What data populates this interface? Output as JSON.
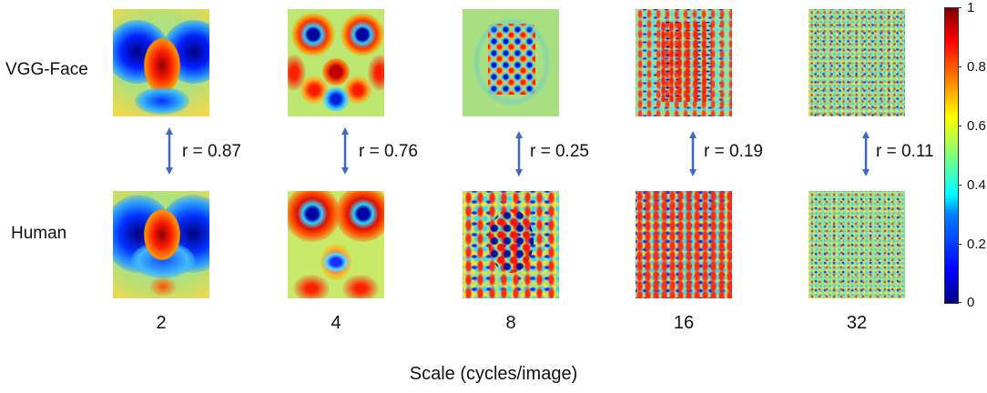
{
  "row_labels": {
    "top": "VGG-Face",
    "bottom": "Human"
  },
  "scales": [
    "2",
    "4",
    "8",
    "16",
    "32"
  ],
  "correlations": [
    "r = 0.87",
    "r = 0.76",
    "r = 0.25",
    "r = 0.19",
    "r = 0.11"
  ],
  "x_axis_title": "Scale (cycles/image)",
  "colorbar": {
    "ticks": [
      "1",
      "0.8",
      "0.6",
      "0.4",
      "0.2",
      "0"
    ],
    "colormap": "jet",
    "colors": {
      "low": "#00007f",
      "mid": "#7fff7f",
      "high": "#7f0000"
    }
  },
  "arrow_color": "#3b6cc0"
}
